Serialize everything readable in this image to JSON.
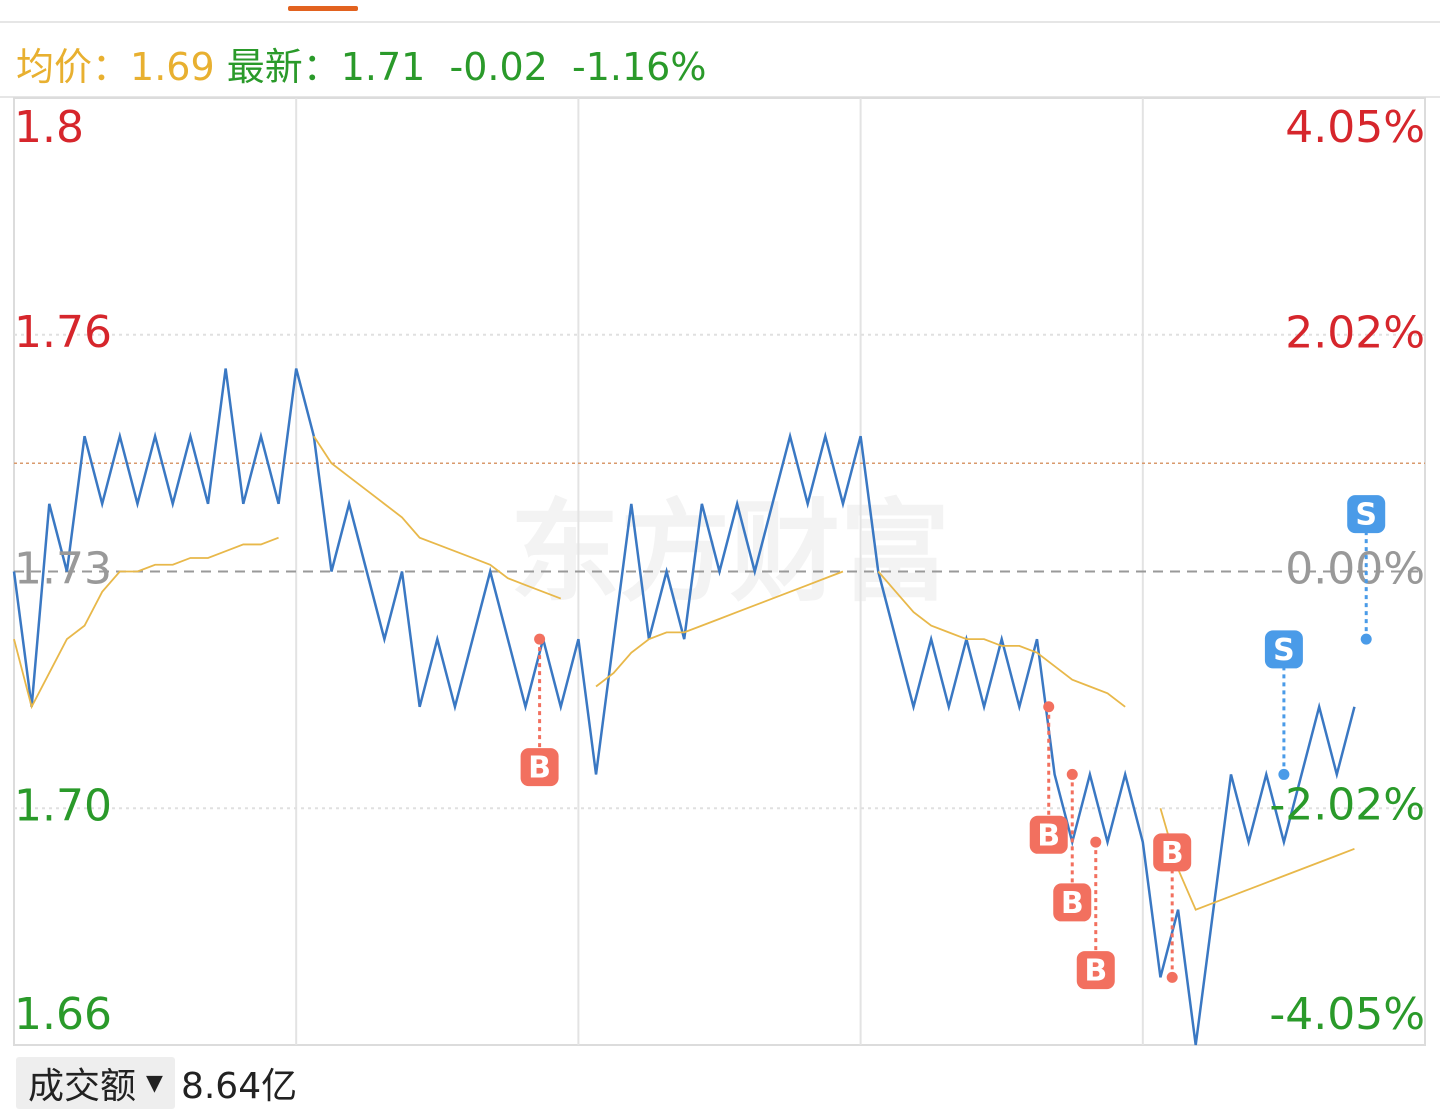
{
  "header": {
    "avg_label": "均价：",
    "avg": "1.69",
    "latest_label": "最新：",
    "latest": "1.71",
    "change": "-0.02",
    "change_pct": "-1.16%"
  },
  "footer": {
    "metric": "成交额",
    "metric_value": "8.64亿"
  },
  "chart_data": {
    "type": "line",
    "watermark": "东方财富",
    "x": [
      0,
      3,
      6,
      9,
      12,
      15,
      18,
      21,
      24,
      27,
      30,
      33,
      36,
      39,
      42,
      45,
      48,
      51,
      54,
      57,
      60,
      63,
      66,
      69,
      72,
      75,
      78,
      81,
      84,
      87,
      90,
      93,
      96,
      99,
      102,
      105,
      108,
      111,
      114,
      117,
      120,
      123,
      126,
      129,
      132,
      135,
      138,
      141,
      144,
      147,
      150,
      153,
      156,
      159,
      162,
      165,
      168,
      171,
      174,
      177,
      180,
      183,
      186,
      189,
      192,
      195,
      198,
      201,
      204,
      207,
      210,
      213,
      216,
      219,
      222,
      225,
      228
    ],
    "series": [
      {
        "color": "#3a78c3",
        "values": [
          1.73,
          1.71,
          1.74,
          1.73,
          1.75,
          1.74,
          1.75,
          1.74,
          1.75,
          1.74,
          1.75,
          1.74,
          1.76,
          1.74,
          1.75,
          1.74,
          1.76,
          1.75,
          1.73,
          1.74,
          1.73,
          1.72,
          1.73,
          1.71,
          1.72,
          1.71,
          1.72,
          1.73,
          1.72,
          1.71,
          1.72,
          1.71,
          1.72,
          1.7,
          1.72,
          1.74,
          1.72,
          1.73,
          1.72,
          1.74,
          1.73,
          1.74,
          1.73,
          1.74,
          1.75,
          1.74,
          1.75,
          1.74,
          1.75,
          1.73,
          1.72,
          1.71,
          1.72,
          1.71,
          1.72,
          1.71,
          1.72,
          1.71,
          1.72,
          1.7,
          1.69,
          1.7,
          1.69,
          1.7,
          1.69,
          1.67,
          1.68,
          1.66,
          1.68,
          1.7,
          1.69,
          1.7,
          1.69,
          1.7,
          1.71,
          1.7,
          1.71
        ]
      },
      {
        "color": "#e8b84a",
        "values": [
          1.72,
          1.71,
          1.715,
          1.72,
          1.722,
          1.727,
          1.73,
          1.73,
          1.731,
          1.731,
          1.732,
          1.732,
          1.733,
          1.734,
          1.734,
          1.735,
          null,
          1.75,
          1.746,
          1.744,
          1.742,
          1.74,
          1.738,
          1.735,
          1.734,
          1.733,
          1.732,
          1.731,
          1.729,
          1.728,
          1.727,
          1.726,
          null,
          1.713,
          1.715,
          1.718,
          1.72,
          1.721,
          1.721,
          1.722,
          1.723,
          1.724,
          1.725,
          1.726,
          1.727,
          1.728,
          1.729,
          1.73,
          null,
          1.73,
          1.727,
          1.724,
          1.722,
          1.721,
          1.72,
          1.72,
          1.719,
          1.719,
          1.718,
          1.716,
          1.714,
          1.713,
          1.712,
          1.71,
          null,
          1.695,
          1.686,
          1.68,
          1.681,
          1.682,
          1.683,
          1.684,
          1.685,
          1.686,
          1.687,
          1.688,
          1.689
        ]
      }
    ],
    "trades": [
      {
        "label": "B",
        "x": 89.4,
        "price": 1.72,
        "color": "#f2705f"
      },
      {
        "label": "B",
        "x": 176,
        "price": 1.71,
        "color": "#f2705f"
      },
      {
        "label": "B",
        "x": 180,
        "price": 1.7,
        "color": "#f2705f"
      },
      {
        "label": "B",
        "x": 184,
        "price": 1.69,
        "color": "#f2705f"
      },
      {
        "label": "B",
        "x": 197,
        "price": 1.67,
        "color": "#f2705f"
      },
      {
        "label": "S",
        "x": 216,
        "price": 1.7,
        "color": "#4a9be8"
      },
      {
        "label": "S",
        "x": 230,
        "price": 1.72,
        "color": "#4a9be8"
      }
    ],
    "base": 1.73,
    "ref_line": 1.746,
    "xlim": [
      0,
      240
    ],
    "xticks": [
      48,
      96,
      144,
      192
    ],
    "ylim": [
      1.66,
      1.8
    ],
    "yticks": [
      1.66,
      {
        "value": 1.695,
        "label": "1.70"
      },
      1.73,
      {
        "value": 1.765,
        "label": "1.76"
      },
      1.8
    ],
    "y2lim": [
      -4.05,
      4.05
    ],
    "y2ticks": [
      {
        "value": -4.05,
        "label": "-4.05%"
      },
      {
        "value": -2.02,
        "label": "-2.02%"
      },
      {
        "value": 0,
        "label": "0.00%"
      },
      {
        "value": 2.02,
        "label": "2.02%"
      },
      {
        "value": 4.05,
        "label": "4.05%"
      }
    ],
    "grid": true
  }
}
